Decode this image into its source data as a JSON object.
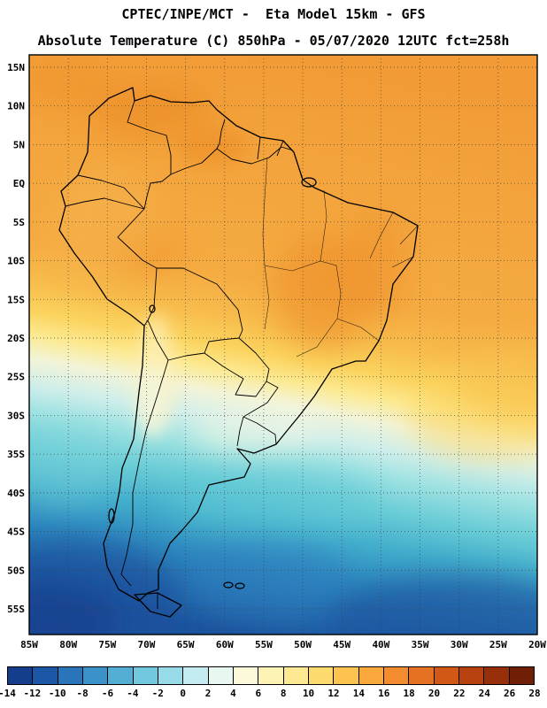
{
  "header": {
    "line1": "CPTEC/INPE/MCT -  Eta Model 15km - GFS",
    "line2": "Absolute Temperature (C) 850hPa - 05/07/2020 12UTC fct=258h"
  },
  "map": {
    "lat_ticks": [
      "15N",
      "10N",
      "5N",
      "EQ",
      "5S",
      "10S",
      "15S",
      "20S",
      "25S",
      "30S",
      "35S",
      "40S",
      "45S",
      "50S",
      "55S"
    ],
    "lon_ticks": [
      "85W",
      "80W",
      "75W",
      "70W",
      "65W",
      "60W",
      "55W",
      "50W",
      "45W",
      "40W",
      "35W",
      "30W",
      "25W",
      "20W"
    ]
  },
  "colorbar": {
    "tick_labels": [
      "-14",
      "-12",
      "-10",
      "-8",
      "-6",
      "-4",
      "-2",
      "0",
      "2",
      "4",
      "6",
      "8",
      "10",
      "12",
      "14",
      "16",
      "18",
      "20",
      "22",
      "24",
      "26",
      "28"
    ],
    "cell_colors": [
      "#143d8c",
      "#1c57a6",
      "#2a74ba",
      "#3b92c8",
      "#54aed4",
      "#72c8de",
      "#98dbe8",
      "#c4ecf0",
      "#e8f7f0",
      "#fbf9da",
      "#fdf3b4",
      "#fde992",
      "#fdda6e",
      "#fcc44f",
      "#f9a83c",
      "#f28c2e",
      "#e57122",
      "#d25818",
      "#b74210",
      "#962f0a",
      "#6e1f06"
    ]
  },
  "chart_data": {
    "type": "heatmap",
    "title": "Absolute Temperature (C) 850hPa",
    "source": "CPTEC/INPE/MCT",
    "model": "Eta Model 15km - GFS",
    "valid_time": "05/07/2020 12UTC",
    "forecast": "fct=258h",
    "colorbar_range": [
      -14,
      28
    ],
    "colorbar_step": 2,
    "lat_extent": [
      "15N",
      "55S"
    ],
    "lon_extent": [
      "85W",
      "20W"
    ]
  }
}
